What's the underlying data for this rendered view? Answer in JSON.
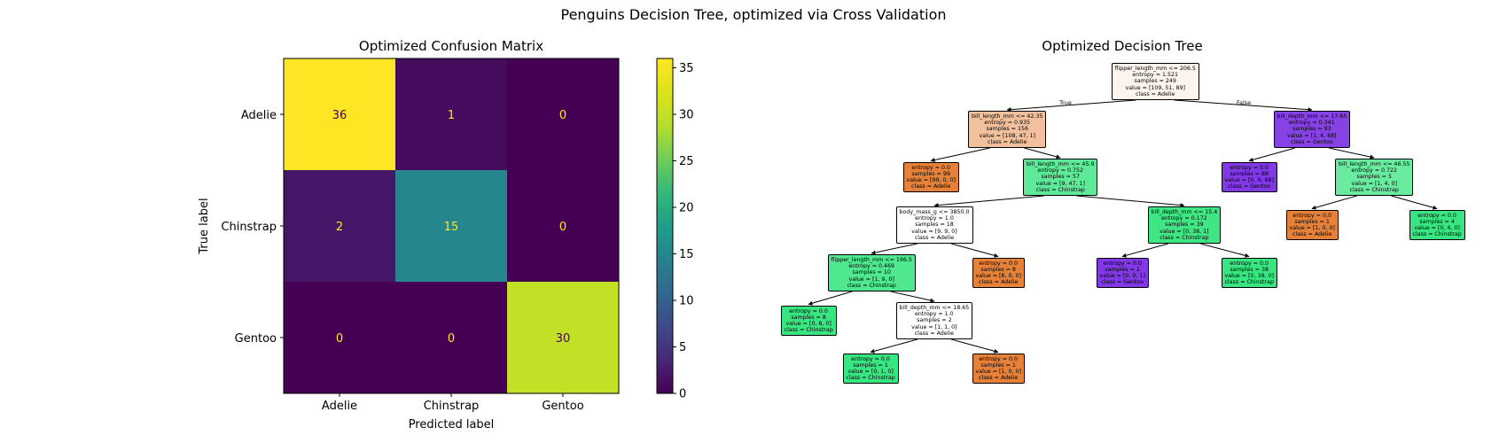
{
  "figure": {
    "suptitle": "Penguins Decision Tree, optimized via Cross Validation"
  },
  "chart_data": [
    {
      "type": "heatmap",
      "title": "Optimized Confusion Matrix",
      "xlabel": "Predicted label",
      "ylabel": "True label",
      "x_categories": [
        "Adelie",
        "Chinstrap",
        "Gentoo"
      ],
      "y_categories": [
        "Adelie",
        "Chinstrap",
        "Gentoo"
      ],
      "values": [
        [
          36,
          1,
          0
        ],
        [
          2,
          15,
          0
        ],
        [
          0,
          0,
          30
        ]
      ],
      "colormap": "viridis",
      "colorbar": {
        "min": 0,
        "max": 36,
        "ticks": [
          0,
          5,
          10,
          15,
          20,
          25,
          30,
          35
        ]
      },
      "text_colors": {
        "light": "#fde725",
        "dark": "#440154"
      }
    },
    {
      "type": "tree",
      "title": "Optimized Decision Tree",
      "edge_labels": {
        "left": "True",
        "right": "False"
      },
      "class_colors": {
        "Adelie": "#e58139",
        "Chinstrap": "#39e581",
        "Gentoo": "#8139e5"
      },
      "nodes": [
        {
          "id": 0,
          "parent": null,
          "lines": [
            "flipper_length_mm <= 206.5",
            "entropy = 1.521",
            "samples = 249",
            "value = [109, 51, 89]",
            "class = Adelie"
          ],
          "fill": "#fdf4ee"
        },
        {
          "id": 1,
          "parent": 0,
          "lines": [
            "bill_length_mm <= 42.35",
            "entropy = 0.935",
            "samples = 156",
            "value = [108, 47, 1]",
            "class = Adelie"
          ],
          "fill": "#f2c09c"
        },
        {
          "id": 2,
          "parent": 1,
          "lines": [
            "entropy = 0.0",
            "samples = 99",
            "value = [99, 0, 0]",
            "class = Adelie"
          ],
          "fill": "#e58139"
        },
        {
          "id": 3,
          "parent": 1,
          "lines": [
            "bill_length_mm <= 45.9",
            "entropy = 0.752",
            "samples = 57",
            "value = [9, 47, 1]",
            "class = Chinstrap"
          ],
          "fill": "#5fea99"
        },
        {
          "id": 4,
          "parent": 3,
          "lines": [
            "body_mass_g <= 3850.0",
            "entropy = 1.0",
            "samples = 18",
            "value = [9, 9, 0]",
            "class = Adelie"
          ],
          "fill": "#ffffff"
        },
        {
          "id": 5,
          "parent": 4,
          "lines": [
            "flipper_length_mm <= 196.5",
            "entropy = 0.469",
            "samples = 10",
            "value = [1, 9, 0]",
            "class = Chinstrap"
          ],
          "fill": "#4fe88f"
        },
        {
          "id": 6,
          "parent": 5,
          "lines": [
            "entropy = 0.0",
            "samples = 8",
            "value = [0, 8, 0]",
            "class = Chinstrap"
          ],
          "fill": "#39e581"
        },
        {
          "id": 7,
          "parent": 5,
          "lines": [
            "bill_depth_mm <= 18.65",
            "entropy = 1.0",
            "samples = 2",
            "value = [1, 1, 0]",
            "class = Adelie"
          ],
          "fill": "#ffffff"
        },
        {
          "id": 8,
          "parent": 7,
          "lines": [
            "entropy = 0.0",
            "samples = 1",
            "value = [0, 1, 0]",
            "class = Chinstrap"
          ],
          "fill": "#39e581"
        },
        {
          "id": 9,
          "parent": 7,
          "lines": [
            "entropy = 0.0",
            "samples = 1",
            "value = [1, 0, 0]",
            "class = Adelie"
          ],
          "fill": "#e58139"
        },
        {
          "id": 10,
          "parent": 4,
          "lines": [
            "entropy = 0.0",
            "samples = 8",
            "value = [8, 0, 0]",
            "class = Adelie"
          ],
          "fill": "#e58139"
        },
        {
          "id": 11,
          "parent": 3,
          "lines": [
            "bill_depth_mm <= 15.4",
            "entropy = 0.172",
            "samples = 39",
            "value = [0, 38, 1]",
            "class = Chinstrap"
          ],
          "fill": "#3ee684"
        },
        {
          "id": 12,
          "parent": 11,
          "lines": [
            "entropy = 0.0",
            "samples = 1",
            "value = [0, 0, 1]",
            "class = Gentoo"
          ],
          "fill": "#8139e5"
        },
        {
          "id": 13,
          "parent": 11,
          "lines": [
            "entropy = 0.0",
            "samples = 38",
            "value = [0, 38, 0]",
            "class = Chinstrap"
          ],
          "fill": "#39e581"
        },
        {
          "id": 14,
          "parent": 0,
          "lines": [
            "bill_depth_mm <= 17.65",
            "entropy = 0.341",
            "samples = 93",
            "value = [1, 4, 88]",
            "class = Gentoo"
          ],
          "fill": "#8742e6"
        },
        {
          "id": 15,
          "parent": 14,
          "lines": [
            "entropy = 0.0",
            "samples = 88",
            "value = [0, 0, 88]",
            "class = Gentoo"
          ],
          "fill": "#8139e5"
        },
        {
          "id": 16,
          "parent": 14,
          "lines": [
            "bill_length_mm <= 46.55",
            "entropy = 0.722",
            "samples = 5",
            "value = [1, 4, 0]",
            "class = Chinstrap"
          ],
          "fill": "#6aeca0"
        },
        {
          "id": 17,
          "parent": 16,
          "lines": [
            "entropy = 0.0",
            "samples = 1",
            "value = [1, 0, 0]",
            "class = Adelie"
          ],
          "fill": "#e58139"
        },
        {
          "id": 18,
          "parent": 16,
          "lines": [
            "entropy = 0.0",
            "samples = 4",
            "value = [0, 4, 0]",
            "class = Chinstrap"
          ],
          "fill": "#39e581"
        }
      ]
    }
  ]
}
